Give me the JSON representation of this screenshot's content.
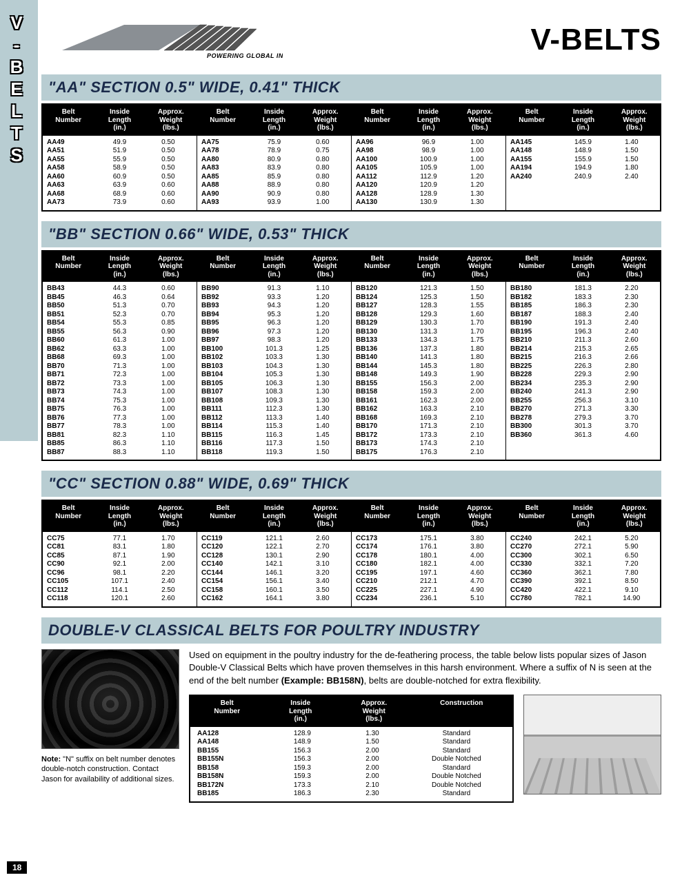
{
  "side_label": "V-BELTS",
  "tagline": "POWERING GLOBAL INDUSTRY",
  "page_title": "V-BELTS",
  "page_number": "18",
  "headers": {
    "belt": "Belt\nNumber",
    "len": "Inside\nLength\n(in.)",
    "wt": "Approx.\nWeight\n(lbs.)",
    "construction": "Construction"
  },
  "note_label": "Note:",
  "note_text": " \"N\" suffix on belt number denotes double-notch construction. Contact Jason for availability of additional sizes.",
  "sections": [
    {
      "title": "\"AA\" SECTION 0.5\" WIDE, 0.41\" THICK",
      "cols": [
        [
          [
            "AA49",
            "49.9",
            "0.50"
          ],
          [
            "AA51",
            "51.9",
            "0.50"
          ],
          [
            "AA55",
            "55.9",
            "0.50"
          ],
          [
            "AA58",
            "58.9",
            "0.50"
          ],
          [
            "AA60",
            "60.9",
            "0.50"
          ],
          [
            "AA63",
            "63.9",
            "0.60"
          ],
          [
            "AA68",
            "68.9",
            "0.60"
          ],
          [
            "AA73",
            "73.9",
            "0.60"
          ]
        ],
        [
          [
            "AA75",
            "75.9",
            "0.60"
          ],
          [
            "AA78",
            "78.9",
            "0.75"
          ],
          [
            "AA80",
            "80.9",
            "0.80"
          ],
          [
            "AA83",
            "83.9",
            "0.80"
          ],
          [
            "AA85",
            "85.9",
            "0.80"
          ],
          [
            "AA88",
            "88.9",
            "0.80"
          ],
          [
            "AA90",
            "90.9",
            "0.80"
          ],
          [
            "AA93",
            "93.9",
            "1.00"
          ]
        ],
        [
          [
            "AA96",
            "96.9",
            "1.00"
          ],
          [
            "AA98",
            "98.9",
            "1.00"
          ],
          [
            "AA100",
            "100.9",
            "1.00"
          ],
          [
            "AA105",
            "105.9",
            "1.00"
          ],
          [
            "AA112",
            "112.9",
            "1.20"
          ],
          [
            "AA120",
            "120.9",
            "1.20"
          ],
          [
            "AA128",
            "128.9",
            "1.30"
          ],
          [
            "AA130",
            "130.9",
            "1.30"
          ]
        ],
        [
          [
            "AA145",
            "145.9",
            "1.40"
          ],
          [
            "AA148",
            "148.9",
            "1.50"
          ],
          [
            "AA155",
            "155.9",
            "1.50"
          ],
          [
            "AA194",
            "194.9",
            "1.80"
          ],
          [
            "AA240",
            "240.9",
            "2.40"
          ]
        ]
      ]
    },
    {
      "title": "\"BB\" SECTION 0.66\" WIDE, 0.53\" THICK",
      "cols": [
        [
          [
            "BB43",
            "44.3",
            "0.60"
          ],
          [
            "BB45",
            "46.3",
            "0.64"
          ],
          [
            "BB50",
            "51.3",
            "0.70"
          ],
          [
            "BB51",
            "52.3",
            "0.70"
          ],
          [
            "BB54",
            "55.3",
            "0.85"
          ],
          [
            "BB55",
            "56.3",
            "0.90"
          ],
          [
            "BB60",
            "61.3",
            "1.00"
          ],
          [
            "BB62",
            "63.3",
            "1.00"
          ],
          [
            "BB68",
            "69.3",
            "1.00"
          ],
          [
            "BB70",
            "71.3",
            "1.00"
          ],
          [
            "BB71",
            "72.3",
            "1.00"
          ],
          [
            "BB72",
            "73.3",
            "1.00"
          ],
          [
            "BB73",
            "74.3",
            "1.00"
          ],
          [
            "BB74",
            "75.3",
            "1.00"
          ],
          [
            "BB75",
            "76.3",
            "1.00"
          ],
          [
            "BB76",
            "77.3",
            "1.00"
          ],
          [
            "BB77",
            "78.3",
            "1.00"
          ],
          [
            "BB81",
            "82.3",
            "1.10"
          ],
          [
            "BB85",
            "86.3",
            "1.10"
          ],
          [
            "BB87",
            "88.3",
            "1.10"
          ]
        ],
        [
          [
            "BB90",
            "91.3",
            "1.10"
          ],
          [
            "BB92",
            "93.3",
            "1.20"
          ],
          [
            "BB93",
            "94.3",
            "1.20"
          ],
          [
            "BB94",
            "95.3",
            "1.20"
          ],
          [
            "BB95",
            "96.3",
            "1.20"
          ],
          [
            "BB96",
            "97.3",
            "1.20"
          ],
          [
            "BB97",
            "98.3",
            "1.20"
          ],
          [
            "BB100",
            "101.3",
            "1.25"
          ],
          [
            "BB102",
            "103.3",
            "1.30"
          ],
          [
            "BB103",
            "104.3",
            "1.30"
          ],
          [
            "BB104",
            "105.3",
            "1.30"
          ],
          [
            "BB105",
            "106.3",
            "1.30"
          ],
          [
            "BB107",
            "108.3",
            "1.30"
          ],
          [
            "BB108",
            "109.3",
            "1.30"
          ],
          [
            "BB111",
            "112.3",
            "1.30"
          ],
          [
            "BB112",
            "113.3",
            "1.40"
          ],
          [
            "BB114",
            "115.3",
            "1.40"
          ],
          [
            "BB115",
            "116.3",
            "1.45"
          ],
          [
            "BB116",
            "117.3",
            "1.50"
          ],
          [
            "BB118",
            "119.3",
            "1.50"
          ]
        ],
        [
          [
            "BB120",
            "121.3",
            "1.50"
          ],
          [
            "BB124",
            "125.3",
            "1.50"
          ],
          [
            "BB127",
            "128.3",
            "1.55"
          ],
          [
            "BB128",
            "129.3",
            "1.60"
          ],
          [
            "BB129",
            "130.3",
            "1.70"
          ],
          [
            "BB130",
            "131.3",
            "1.70"
          ],
          [
            "BB133",
            "134.3",
            "1.75"
          ],
          [
            "BB136",
            "137.3",
            "1.80"
          ],
          [
            "BB140",
            "141.3",
            "1.80"
          ],
          [
            "BB144",
            "145.3",
            "1.80"
          ],
          [
            "BB148",
            "149.3",
            "1.90"
          ],
          [
            "BB155",
            "156.3",
            "2.00"
          ],
          [
            "BB158",
            "159.3",
            "2.00"
          ],
          [
            "BB161",
            "162.3",
            "2.00"
          ],
          [
            "BB162",
            "163.3",
            "2.10"
          ],
          [
            "BB168",
            "169.3",
            "2.10"
          ],
          [
            "BB170",
            "171.3",
            "2.10"
          ],
          [
            "BB172",
            "173.3",
            "2.10"
          ],
          [
            "BB173",
            "174.3",
            "2.10"
          ],
          [
            "BB175",
            "176.3",
            "2.10"
          ]
        ],
        [
          [
            "BB180",
            "181.3",
            "2.20"
          ],
          [
            "BB182",
            "183.3",
            "2.30"
          ],
          [
            "BB185",
            "186.3",
            "2.30"
          ],
          [
            "BB187",
            "188.3",
            "2.40"
          ],
          [
            "BB190",
            "191.3",
            "2.40"
          ],
          [
            "BB195",
            "196.3",
            "2.40"
          ],
          [
            "BB210",
            "211.3",
            "2.60"
          ],
          [
            "BB214",
            "215.3",
            "2.65"
          ],
          [
            "BB215",
            "216.3",
            "2.66"
          ],
          [
            "BB225",
            "226.3",
            "2.80"
          ],
          [
            "BB228",
            "229.3",
            "2.90"
          ],
          [
            "BB234",
            "235.3",
            "2.90"
          ],
          [
            "BB240",
            "241.3",
            "2.90"
          ],
          [
            "BB255",
            "256.3",
            "3.10"
          ],
          [
            "BB270",
            "271.3",
            "3.30"
          ],
          [
            "BB278",
            "279.3",
            "3.70"
          ],
          [
            "BB300",
            "301.3",
            "3.70"
          ],
          [
            "BB360",
            "361.3",
            "4.60"
          ]
        ]
      ]
    },
    {
      "title": "\"CC\" SECTION 0.88\" WIDE, 0.69\" THICK",
      "cols": [
        [
          [
            "CC75",
            "77.1",
            "1.70"
          ],
          [
            "CC81",
            "83.1",
            "1.80"
          ],
          [
            "CC85",
            "87.1",
            "1.90"
          ],
          [
            "CC90",
            "92.1",
            "2.00"
          ],
          [
            "CC96",
            "98.1",
            "2.20"
          ],
          [
            "CC105",
            "107.1",
            "2.40"
          ],
          [
            "CC112",
            "114.1",
            "2.50"
          ],
          [
            "CC118",
            "120.1",
            "2.60"
          ]
        ],
        [
          [
            "CC119",
            "121.1",
            "2.60"
          ],
          [
            "CC120",
            "122.1",
            "2.70"
          ],
          [
            "CC128",
            "130.1",
            "2.90"
          ],
          [
            "CC140",
            "142.1",
            "3.10"
          ],
          [
            "CC144",
            "146.1",
            "3.20"
          ],
          [
            "CC154",
            "156.1",
            "3.40"
          ],
          [
            "CC158",
            "160.1",
            "3.50"
          ],
          [
            "CC162",
            "164.1",
            "3.80"
          ]
        ],
        [
          [
            "CC173",
            "175.1",
            "3.80"
          ],
          [
            "CC174",
            "176.1",
            "3.80"
          ],
          [
            "CC178",
            "180.1",
            "4.00"
          ],
          [
            "CC180",
            "182.1",
            "4.00"
          ],
          [
            "CC195",
            "197.1",
            "4.60"
          ],
          [
            "CC210",
            "212.1",
            "4.70"
          ],
          [
            "CC225",
            "227.1",
            "4.90"
          ],
          [
            "CC234",
            "236.1",
            "5.10"
          ]
        ],
        [
          [
            "CC240",
            "242.1",
            "5.20"
          ],
          [
            "CC270",
            "272.1",
            "5.90"
          ],
          [
            "CC300",
            "302.1",
            "6.50"
          ],
          [
            "CC330",
            "332.1",
            "7.20"
          ],
          [
            "CC360",
            "362.1",
            "7.80"
          ],
          [
            "CC390",
            "392.1",
            "8.50"
          ],
          [
            "CC420",
            "422.1",
            "9.10"
          ],
          [
            "CC780",
            "782.1",
            "14.90"
          ]
        ]
      ]
    }
  ],
  "poultry": {
    "title": "DOUBLE-V CLASSICAL BELTS FOR POULTRY INDUSTRY",
    "desc_1": "Used on equipment in the poultry industry for the de-feathering process, the table below lists popular sizes of Jason Double-V Classical Belts which have proven themselves in this harsh environment. Where a suffix of N is seen at the end of the belt number ",
    "desc_bold": "(Example: BB158N)",
    "desc_2": ", belts are double-notched for extra flexibility.",
    "rows": [
      [
        "AA128",
        "128.9",
        "1.30",
        "Standard"
      ],
      [
        "AA148",
        "148.9",
        "1.50",
        "Standard"
      ],
      [
        "BB155",
        "156.3",
        "2.00",
        "Standard"
      ],
      [
        "BB155N",
        "156.3",
        "2.00",
        "Double Notched"
      ],
      [
        "BB158",
        "159.3",
        "2.00",
        "Standard"
      ],
      [
        "BB158N",
        "159.3",
        "2.00",
        "Double Notched"
      ],
      [
        "BB172N",
        "173.3",
        "2.10",
        "Double Notched"
      ],
      [
        "BB185",
        "186.3",
        "2.30",
        "Standard"
      ]
    ]
  }
}
